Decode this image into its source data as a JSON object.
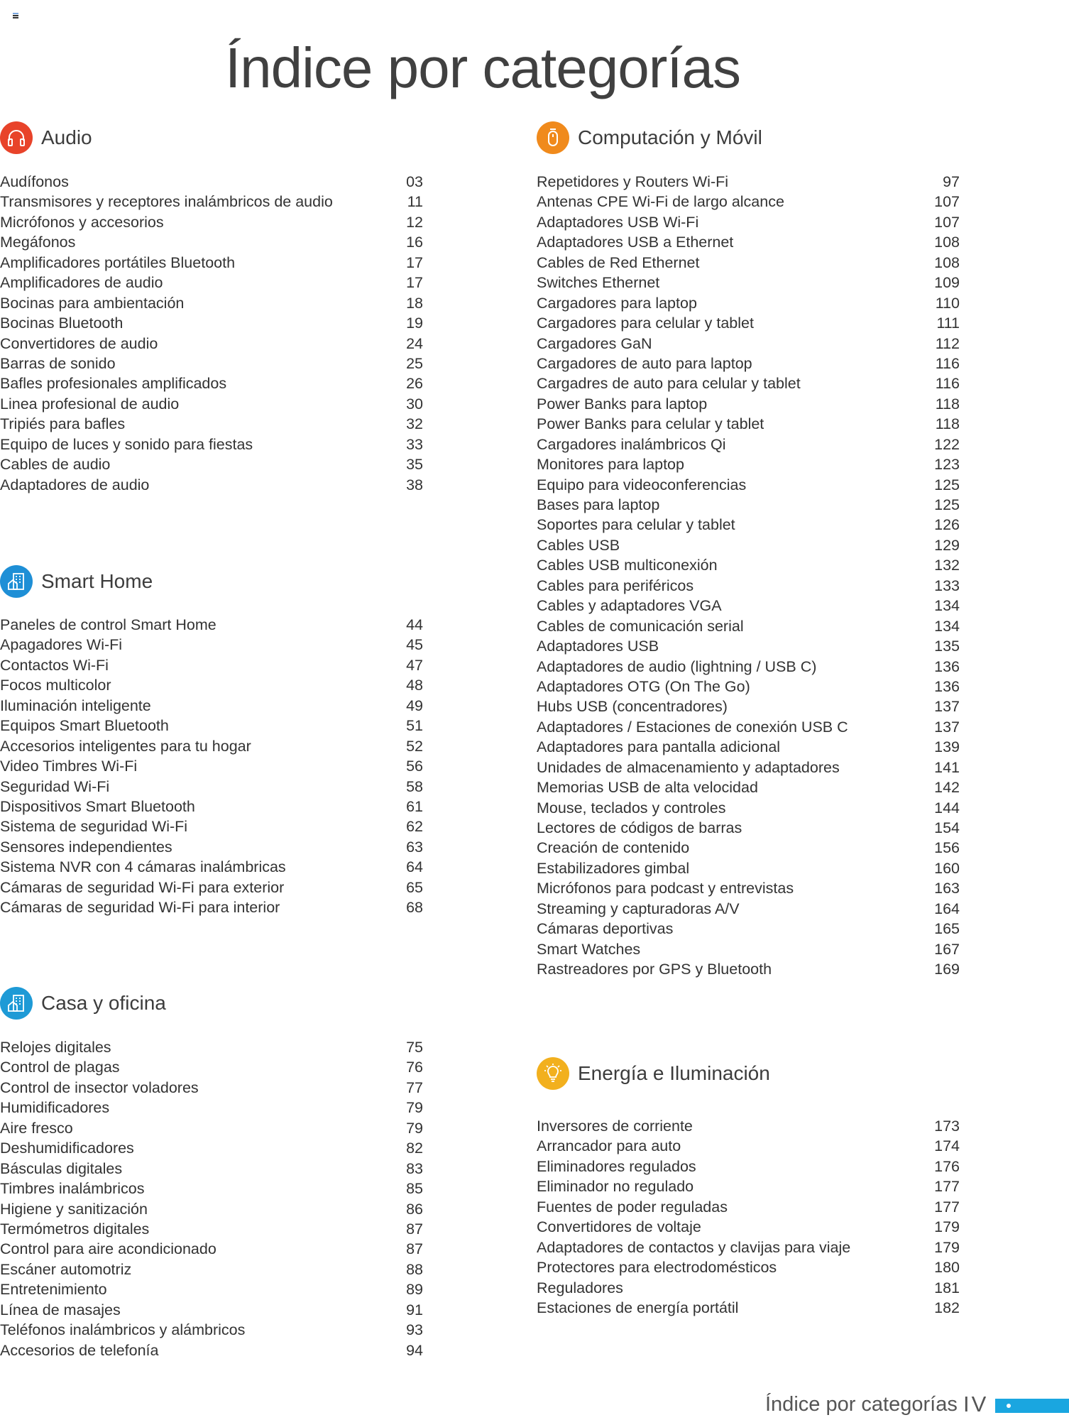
{
  "page_title": "Índice por categorías",
  "footer": {
    "label": "Índice por categorías",
    "page": "IV",
    "accent_color": "#1aa6e0"
  },
  "sections": {
    "audio": {
      "title": "Audio",
      "icon": "headphones-icon",
      "color": "#e8432a",
      "items": [
        [
          "Audífonos",
          "03"
        ],
        [
          "Transmisores y receptores inalámbricos de audio",
          "11"
        ],
        [
          "Micrófonos y accesorios",
          "12"
        ],
        [
          "Megáfonos",
          "16"
        ],
        [
          "Amplificadores portátiles Bluetooth",
          "17"
        ],
        [
          "Amplificadores de audio",
          "17"
        ],
        [
          "Bocinas para ambientación",
          "18"
        ],
        [
          "Bocinas Bluetooth",
          "19"
        ],
        [
          "Convertidores de audio",
          "24"
        ],
        [
          "Barras de sonido",
          "25"
        ],
        [
          "Bafles profesionales amplificados",
          "26"
        ],
        [
          "Linea profesional de audio",
          "30"
        ],
        [
          "Tripiés para bafles",
          "32"
        ],
        [
          "Equipo de luces y sonido para fiestas",
          "33"
        ],
        [
          "Cables de audio",
          "35"
        ],
        [
          "Adaptadores de audio",
          "38"
        ]
      ]
    },
    "smart_home": {
      "title": "Smart Home",
      "icon": "building-icon",
      "color": "#1e8fd6",
      "items": [
        [
          "Paneles de control Smart Home",
          "44"
        ],
        [
          "Apagadores Wi-Fi",
          "45"
        ],
        [
          "Contactos Wi-Fi",
          "47"
        ],
        [
          "Focos multicolor",
          "48"
        ],
        [
          "Iluminación inteligente",
          "49"
        ],
        [
          "Equipos Smart Bluetooth",
          "51"
        ],
        [
          "Accesorios inteligentes para tu hogar",
          "52"
        ],
        [
          "Video Timbres Wi-Fi",
          "56"
        ],
        [
          "Seguridad Wi-Fi",
          "58"
        ],
        [
          "Dispositivos Smart Bluetooth",
          "61"
        ],
        [
          "Sistema de seguridad Wi-Fi",
          "62"
        ],
        [
          "Sensores independientes",
          "63"
        ],
        [
          "Sistema NVR con 4 cámaras inalámbricas",
          "64"
        ],
        [
          "Cámaras de seguridad Wi-Fi para exterior",
          "65"
        ],
        [
          "Cámaras de seguridad Wi-Fi para interior",
          "68"
        ]
      ]
    },
    "casa_oficina": {
      "title": "Casa y oficina",
      "icon": "building-icon",
      "color": "#1e9ad6",
      "items": [
        [
          "Relojes digitales",
          "75"
        ],
        [
          "Control de plagas",
          "76"
        ],
        [
          "Control de insector voladores",
          "77"
        ],
        [
          "Humidificadores",
          "79"
        ],
        [
          "Aire fresco",
          "79"
        ],
        [
          "Deshumidificadores",
          "82"
        ],
        [
          "Básculas digitales",
          "83"
        ],
        [
          "Timbres inalámbricos",
          "85"
        ],
        [
          "Higiene y sanitización",
          "86"
        ],
        [
          "Termómetros digitales",
          "87"
        ],
        [
          "Control para aire acondicionado",
          "87"
        ],
        [
          "Escáner automotriz",
          "88"
        ],
        [
          "Entretenimiento",
          "89"
        ],
        [
          "Línea de masajes",
          "91"
        ],
        [
          "Teléfonos inalámbricos y alámbricos",
          "93"
        ],
        [
          "Accesorios de telefonía",
          "94"
        ]
      ]
    },
    "computacion": {
      "title": "Computación y Móvil",
      "icon": "mouse-icon",
      "color": "#f08a1c",
      "items": [
        [
          "Repetidores y Routers Wi-Fi",
          "97"
        ],
        [
          "Antenas CPE Wi-Fi de largo alcance",
          "107"
        ],
        [
          "Adaptadores USB Wi-Fi",
          "107"
        ],
        [
          "Adaptadores USB a Ethernet",
          "108"
        ],
        [
          "Cables de Red Ethernet",
          "108"
        ],
        [
          "Switches Ethernet",
          "109"
        ],
        [
          "Cargadores para laptop",
          "110"
        ],
        [
          "Cargadores para celular y tablet",
          "111"
        ],
        [
          "Cargadores GaN",
          "112"
        ],
        [
          "Cargadores de auto para laptop",
          "116"
        ],
        [
          "Cargadres de auto para celular y tablet",
          "116"
        ],
        [
          "Power Banks para laptop",
          "118"
        ],
        [
          "Power Banks para celular y tablet",
          "118"
        ],
        [
          "Cargadores inalámbricos Qi",
          "122"
        ],
        [
          "Monitores para laptop",
          "123"
        ],
        [
          "Equipo para videoconferencias",
          "125"
        ],
        [
          "Bases para laptop",
          "125"
        ],
        [
          "Soportes para celular y tablet",
          "126"
        ],
        [
          "Cables USB",
          "129"
        ],
        [
          "Cables USB multiconexión",
          "132"
        ],
        [
          "Cables para periféricos",
          "133"
        ],
        [
          "Cables y adaptadores VGA",
          "134"
        ],
        [
          "Cables de comunicación serial",
          "134"
        ],
        [
          "Adaptadores USB",
          "135"
        ],
        [
          "Adaptadores de audio (lightning / USB C)",
          "136"
        ],
        [
          "Adaptadores OTG (On The Go)",
          "136"
        ],
        [
          "Hubs USB (concentradores)",
          "137"
        ],
        [
          "Adaptadores / Estaciones de conexión USB C",
          "137"
        ],
        [
          "Adaptadores para pantalla adicional",
          "139"
        ],
        [
          "Unidades de almacenamiento y adaptadores",
          "141"
        ],
        [
          "Memorias USB de alta velocidad",
          "142"
        ],
        [
          "Mouse, teclados y controles",
          "144"
        ],
        [
          "Lectores de códigos de barras",
          "154"
        ],
        [
          "Creación de contenido",
          "156"
        ],
        [
          "Estabilizadores gimbal",
          "160"
        ],
        [
          "Micrófonos para podcast y entrevistas",
          "163"
        ],
        [
          "Streaming y capturadoras A/V",
          "164"
        ],
        [
          "Cámaras deportivas",
          "165"
        ],
        [
          "Smart Watches",
          "167"
        ],
        [
          "Rastreadores por GPS y Bluetooth",
          "169"
        ]
      ]
    },
    "energia": {
      "title": "Energía e Iluminación",
      "icon": "lightbulb-icon",
      "color": "#f2b01e",
      "items": [
        [
          "Inversores de corriente",
          "173"
        ],
        [
          "Arrancador para auto",
          "174"
        ],
        [
          "Eliminadores regulados",
          "176"
        ],
        [
          "Eliminador no regulado",
          "177"
        ],
        [
          "Fuentes de poder reguladas",
          "177"
        ],
        [
          "Convertidores de voltaje",
          "179"
        ],
        [
          "Adaptadores de contactos y clavijas para viaje",
          "179"
        ],
        [
          "Protectores para electrodomésticos",
          "180"
        ],
        [
          "Reguladores",
          "181"
        ],
        [
          "Estaciones de energía portátil",
          "182"
        ]
      ]
    }
  }
}
